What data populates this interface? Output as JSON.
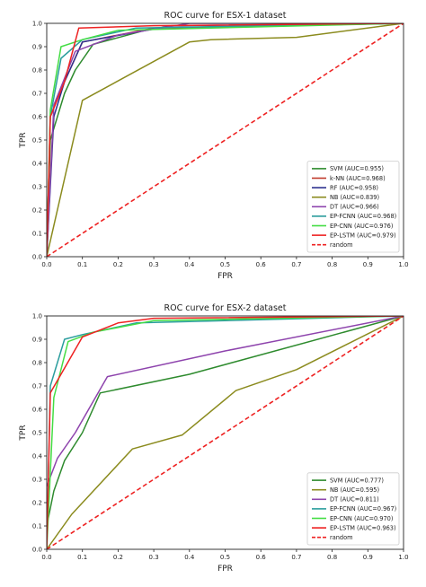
{
  "chart_data": [
    {
      "type": "line",
      "title": "ROC curve for ESX-1 dataset",
      "xlabel": "FPR",
      "ylabel": "TPR",
      "xlim": [
        0,
        1
      ],
      "ylim": [
        0,
        1
      ],
      "xticks": [
        "0.0",
        "0.1",
        "0.2",
        "0.3",
        "0.4",
        "0.5",
        "0.6",
        "0.7",
        "0.8",
        "0.9",
        "1.0"
      ],
      "yticks": [
        "0.0",
        "0.1",
        "0.2",
        "0.3",
        "0.4",
        "0.5",
        "0.6",
        "0.7",
        "0.8",
        "0.9",
        "1.0"
      ],
      "grid": false,
      "legend_position": "lower-right",
      "series": [
        {
          "name": "SVM (AUC=0.955)",
          "color": "#2e8b2e",
          "dash": false,
          "x": [
            0,
            0.01,
            0.05,
            0.08,
            0.13,
            0.3,
            1.0
          ],
          "y": [
            0,
            0.5,
            0.7,
            0.8,
            0.91,
            0.98,
            1.0
          ]
        },
        {
          "name": "k-NN (AUC=0.968)",
          "color": "#c0392b",
          "dash": false,
          "x": [
            0,
            0.01,
            0.05,
            0.1,
            0.3,
            1.0
          ],
          "y": [
            0,
            0.6,
            0.75,
            0.92,
            0.98,
            1.0
          ]
        },
        {
          "name": "RF (AUC=0.958)",
          "color": "#2c2f8f",
          "dash": false,
          "x": [
            0,
            0.02,
            0.05,
            0.1,
            0.35,
            1.0
          ],
          "y": [
            0,
            0.6,
            0.75,
            0.92,
            0.99,
            1.0
          ]
        },
        {
          "name": "NB (AUC=0.839)",
          "color": "#8b8b1e",
          "dash": false,
          "x": [
            0,
            0.1,
            0.4,
            0.46,
            0.7,
            1.0
          ],
          "y": [
            0,
            0.67,
            0.92,
            0.93,
            0.94,
            1.0
          ]
        },
        {
          "name": "DT (AUC=0.966)",
          "color": "#8e44ad",
          "dash": false,
          "x": [
            0,
            0.02,
            0.08,
            0.2,
            0.4,
            1.0
          ],
          "y": [
            0,
            0.65,
            0.88,
            0.95,
            1.0,
            1.0
          ]
        },
        {
          "name": "EP-FCNN (AUC=0.968)",
          "color": "#2a9d9d",
          "dash": false,
          "x": [
            0,
            0.01,
            0.04,
            0.1,
            0.25,
            1.0
          ],
          "y": [
            0,
            0.6,
            0.85,
            0.93,
            0.98,
            1.0
          ]
        },
        {
          "name": "EP-CNN (AUC=0.976)",
          "color": "#44dd44",
          "dash": false,
          "x": [
            0,
            0.01,
            0.04,
            0.1,
            0.2,
            1.0
          ],
          "y": [
            0,
            0.63,
            0.9,
            0.93,
            0.97,
            1.0
          ]
        },
        {
          "name": "EP-LSTM (AUC=0.979)",
          "color": "#ee2222",
          "dash": false,
          "x": [
            0,
            0.01,
            0.05,
            0.09,
            0.3,
            1.0
          ],
          "y": [
            0,
            0.6,
            0.75,
            0.98,
            0.99,
            1.0
          ]
        },
        {
          "name": "random",
          "color": "#ee2222",
          "dash": true,
          "x": [
            0,
            1
          ],
          "y": [
            0,
            1
          ]
        }
      ]
    },
    {
      "type": "line",
      "title": "ROC curve for ESX-2 dataset",
      "xlabel": "FPR",
      "ylabel": "TPR",
      "xlim": [
        0,
        1
      ],
      "ylim": [
        0,
        1
      ],
      "xticks": [
        "0.0",
        "0.1",
        "0.2",
        "0.3",
        "0.4",
        "0.5",
        "0.6",
        "0.7",
        "0.8",
        "0.9",
        "1.0"
      ],
      "yticks": [
        "0.0",
        "0.1",
        "0.2",
        "0.3",
        "0.4",
        "0.5",
        "0.6",
        "0.7",
        "0.8",
        "0.9",
        "1.0"
      ],
      "grid": false,
      "legend_position": "lower-right",
      "series": [
        {
          "name": "SVM (AUC=0.777)",
          "color": "#2e8b2e",
          "dash": false,
          "x": [
            0,
            0.02,
            0.05,
            0.1,
            0.15,
            0.4,
            1.0
          ],
          "y": [
            0.1,
            0.25,
            0.38,
            0.5,
            0.67,
            0.75,
            1.0
          ]
        },
        {
          "name": "NB (AUC=0.595)",
          "color": "#8b8b1e",
          "dash": false,
          "x": [
            0,
            0.07,
            0.24,
            0.38,
            0.53,
            0.7,
            1.0
          ],
          "y": [
            0,
            0.15,
            0.43,
            0.49,
            0.68,
            0.77,
            1.0
          ]
        },
        {
          "name": "DT (AUC=0.811)",
          "color": "#8e44ad",
          "dash": false,
          "x": [
            0,
            0.03,
            0.08,
            0.17,
            0.5,
            1.0
          ],
          "y": [
            0.27,
            0.39,
            0.5,
            0.74,
            0.85,
            1.0
          ]
        },
        {
          "name": "EP-FCNN (AUC=0.967)",
          "color": "#2a9d9d",
          "dash": false,
          "x": [
            0,
            0.01,
            0.05,
            0.1,
            0.25,
            1.0
          ],
          "y": [
            0,
            0.7,
            0.9,
            0.92,
            0.97,
            1.0
          ]
        },
        {
          "name": "EP-CNN (AUC=0.970)",
          "color": "#44dd44",
          "dash": false,
          "x": [
            0,
            0.02,
            0.06,
            0.13,
            0.3,
            1.0
          ],
          "y": [
            0,
            0.65,
            0.89,
            0.93,
            0.98,
            1.0
          ]
        },
        {
          "name": "EP-LSTM (AUC=0.963)",
          "color": "#ee2222",
          "dash": false,
          "x": [
            0,
            0.01,
            0.1,
            0.2,
            0.3,
            1.0
          ],
          "y": [
            0,
            0.67,
            0.91,
            0.97,
            0.99,
            1.0
          ]
        },
        {
          "name": "random",
          "color": "#ee2222",
          "dash": true,
          "x": [
            0,
            1
          ],
          "y": [
            0,
            1
          ]
        }
      ]
    }
  ]
}
